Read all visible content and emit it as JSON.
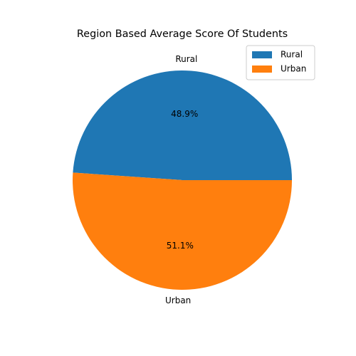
{
  "chart_data": {
    "type": "pie",
    "title": "Region Based Average Score Of Students",
    "slices": [
      {
        "label": "Rural",
        "value": 48.9,
        "pct_label": "48.9%",
        "color": "#1f77b4"
      },
      {
        "label": "Urban",
        "value": 51.1,
        "pct_label": "51.1%",
        "color": "#ff7f0e"
      }
    ],
    "start_angle_deg": 0,
    "direction": "counterclockwise",
    "legend": {
      "placement": "top-right",
      "entries": [
        "Rural",
        "Urban"
      ]
    }
  }
}
